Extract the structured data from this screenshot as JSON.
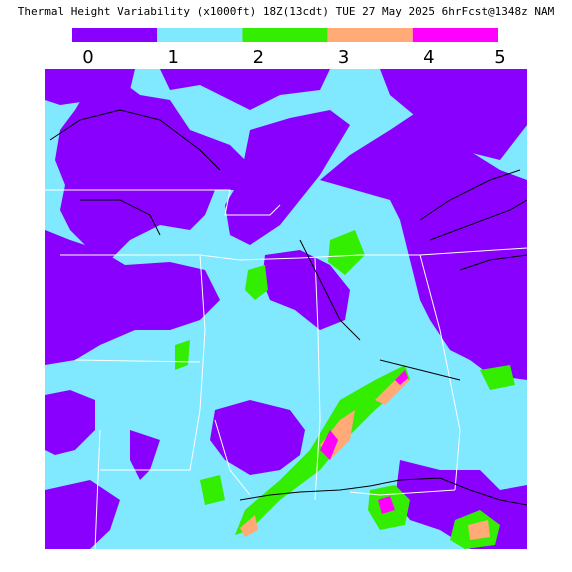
{
  "header": {
    "title": "Thermal Height Variability (x1000ft) 18Z(13cdt) TUE 27 May 2025 6hrFcst@1348z NAM"
  },
  "legend": {
    "ticks": [
      0,
      1,
      2,
      3,
      4,
      5
    ],
    "colors": [
      "#8a00ff",
      "#80e8ff",
      "#33ee00",
      "#ffaa77",
      "#ff00ff"
    ]
  }
}
